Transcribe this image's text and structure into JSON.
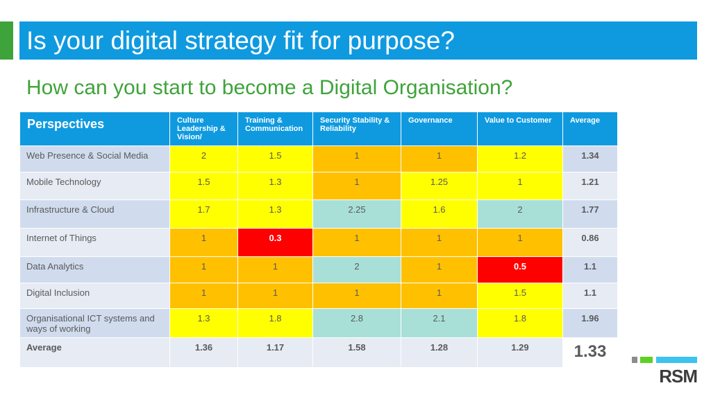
{
  "title": "Is your digital strategy fit for purpose?",
  "subtitle": "How can you start to become a Digital Organisation?",
  "columns": [
    "Perspectives",
    "Culture Leadership & Vision/",
    "Training & Communication",
    "Security Stability & Reliability",
    "Governance",
    "Value to Customer",
    "Average"
  ],
  "rows": [
    {
      "label": "Web Presence & Social Media",
      "values": [
        "2",
        "1.5",
        "1",
        "1",
        "1.2"
      ],
      "colors": [
        "#ffff00",
        "#ffff00",
        "#ffc000",
        "#ffc000",
        "#ffff00"
      ],
      "average": "1.34"
    },
    {
      "label": "Mobile Technology",
      "values": [
        "1.5",
        "1.3",
        "1",
        "1.25",
        "1"
      ],
      "colors": [
        "#ffff00",
        "#ffff00",
        "#ffc000",
        "#ffff00",
        "#ffff00"
      ],
      "average": "1.21"
    },
    {
      "label": "Infrastructure & Cloud",
      "values": [
        "1.7",
        "1.3",
        "2.25",
        "1.6",
        "2"
      ],
      "colors": [
        "#ffff00",
        "#ffff00",
        "#a8e0d8",
        "#ffff00",
        "#a8e0d8"
      ],
      "average": "1.77"
    },
    {
      "label": "Internet of Things",
      "values": [
        "1",
        "0.3",
        "1",
        "1",
        "1"
      ],
      "colors": [
        "#ffc000",
        "#ff0000",
        "#ffc000",
        "#ffc000",
        "#ffc000"
      ],
      "average": "0.86"
    },
    {
      "label": "Data Analytics",
      "values": [
        "1",
        "1",
        "2",
        "1",
        "0.5"
      ],
      "colors": [
        "#ffc000",
        "#ffc000",
        "#a8e0d8",
        "#ffc000",
        "#ff0000"
      ],
      "average": "1.1"
    },
    {
      "label": "Digital Inclusion",
      "values": [
        "1",
        "1",
        "1",
        "1",
        "1.5"
      ],
      "colors": [
        "#ffc000",
        "#ffc000",
        "#ffc000",
        "#ffc000",
        "#ffff00"
      ],
      "average": "1.1"
    },
    {
      "label": "Organisational ICT systems and ways of working",
      "values": [
        "1.3",
        "1.8",
        "2.8",
        "2.1",
        "1.8"
      ],
      "colors": [
        "#ffff00",
        "#ffff00",
        "#a8e0d8",
        "#a8e0d8",
        "#ffff00"
      ],
      "average": "1.96"
    }
  ],
  "footer": {
    "label": "Average",
    "values": [
      "1.36",
      "1.17",
      "1.58",
      "1.28",
      "1.29"
    ],
    "grand_average": "1.33"
  },
  "label_col_colors": [
    "#d0dcee",
    "#e6ebf4"
  ],
  "logo": {
    "text": "RSM"
  }
}
